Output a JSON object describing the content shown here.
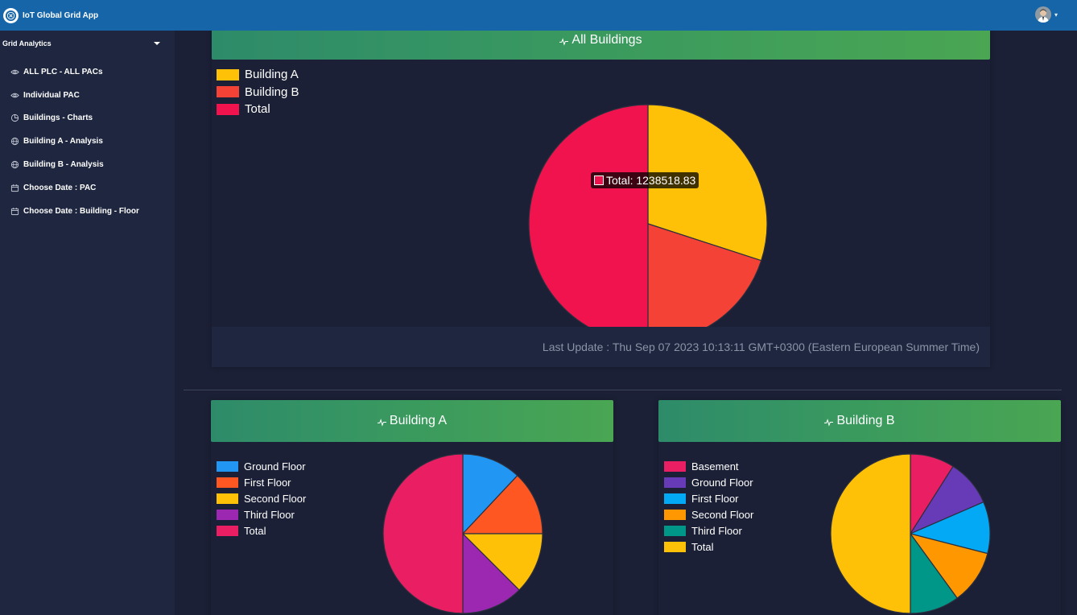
{
  "app": {
    "title": "IoT Global Grid App"
  },
  "sidebar": {
    "header": "Grid Analytics",
    "items": [
      {
        "label": "ALL PLC - ALL PACs",
        "icon": "eye-icon"
      },
      {
        "label": "Individual PAC",
        "icon": "eye-icon"
      },
      {
        "label": "Buildings - Charts",
        "icon": "pie-chart-icon"
      },
      {
        "label": "Building A - Analysis",
        "icon": "globe-icon"
      },
      {
        "label": "Building B - Analysis",
        "icon": "globe-icon"
      },
      {
        "label": "Choose Date : PAC",
        "icon": "calendar-icon"
      },
      {
        "label": "Choose Date : Building - Floor",
        "icon": "calendar-icon"
      }
    ]
  },
  "cards": {
    "all_buildings": {
      "title": "All Buildings",
      "footer": "Last Update : Thu Sep 07 2023 10:13:11 GMT+0300 (Eastern European Summer Time)",
      "tooltip": "Total: 1238518.83"
    },
    "building_a": {
      "title": "Building A"
    },
    "building_b": {
      "title": "Building B"
    }
  },
  "colors": {
    "topbar": "#1565a8",
    "sidebar": "#1e2640",
    "background": "#1b2036",
    "header_gradient_start": "#2e8b6a",
    "header_gradient_end": "#4aa653"
  },
  "chart_data": [
    {
      "type": "pie",
      "title": "All Buildings",
      "categories": [
        "Building A",
        "Building B",
        "Total"
      ],
      "values": [
        0.3,
        0.2,
        0.5
      ],
      "colors": [
        "#ffc107",
        "#f44336",
        "#f0134d"
      ],
      "legend": "top-left"
    },
    {
      "type": "pie",
      "title": "Building A",
      "categories": [
        "Ground Floor",
        "First Floor",
        "Second Floor",
        "Third Floor",
        "Total"
      ],
      "values": [
        0.12,
        0.13,
        0.125,
        0.125,
        0.5
      ],
      "colors": [
        "#2196f3",
        "#ff5722",
        "#ffc107",
        "#9c27b0",
        "#e91e63"
      ],
      "legend": "top-left"
    },
    {
      "type": "pie",
      "title": "Building B",
      "categories": [
        "Basement",
        "Ground Floor",
        "First Floor",
        "Second Floor",
        "Third Floor",
        "Total"
      ],
      "values": [
        0.09,
        0.095,
        0.105,
        0.11,
        0.1,
        0.5
      ],
      "colors": [
        "#e91e63",
        "#673ab7",
        "#03a9f4",
        "#ff9800",
        "#009688",
        "#ffc107"
      ],
      "legend": "top-left"
    }
  ]
}
